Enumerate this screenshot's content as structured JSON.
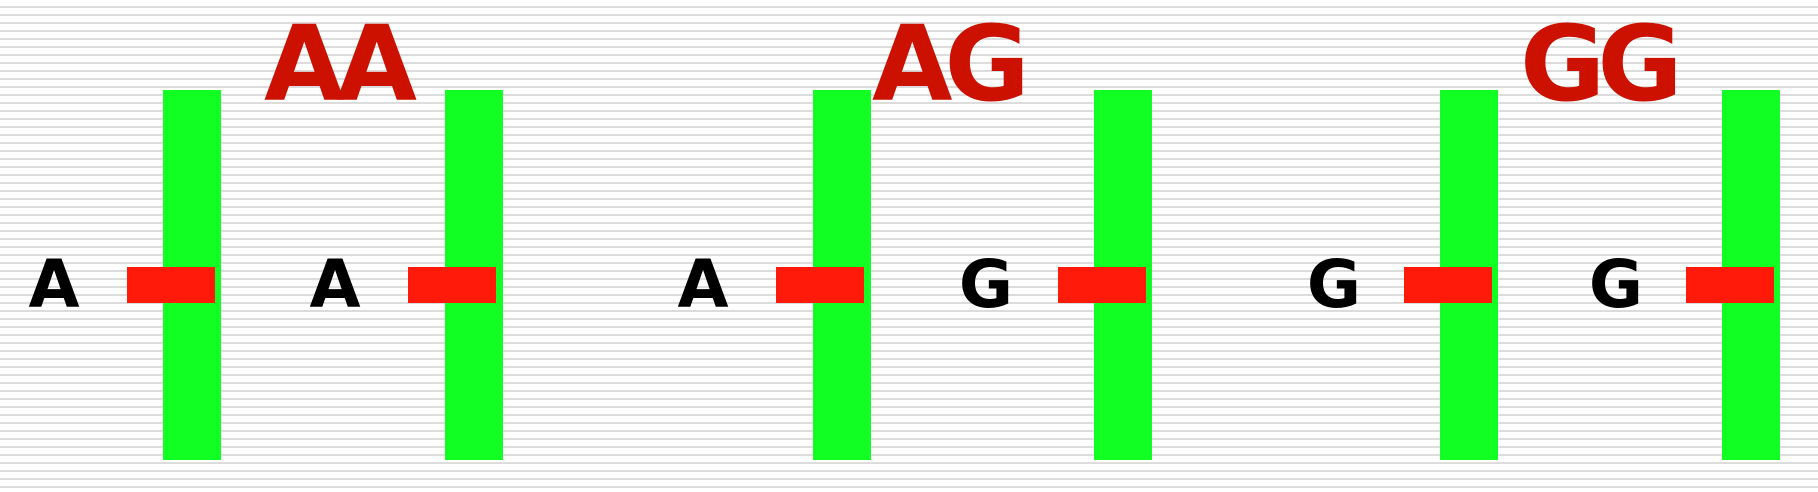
{
  "colors": {
    "genotype_text": "#cc1100",
    "allele_text": "#000000",
    "chromosome": "#11ff22",
    "gene_band": "#ff1a0a"
  },
  "groups": [
    {
      "genotype": "AA",
      "chromosomes": [
        {
          "allele": "A"
        },
        {
          "allele": "A"
        }
      ]
    },
    {
      "genotype": "AG",
      "chromosomes": [
        {
          "allele": "A"
        },
        {
          "allele": "G"
        }
      ]
    },
    {
      "genotype": "GG",
      "chromosomes": [
        {
          "allele": "G"
        },
        {
          "allele": "G"
        }
      ]
    }
  ]
}
